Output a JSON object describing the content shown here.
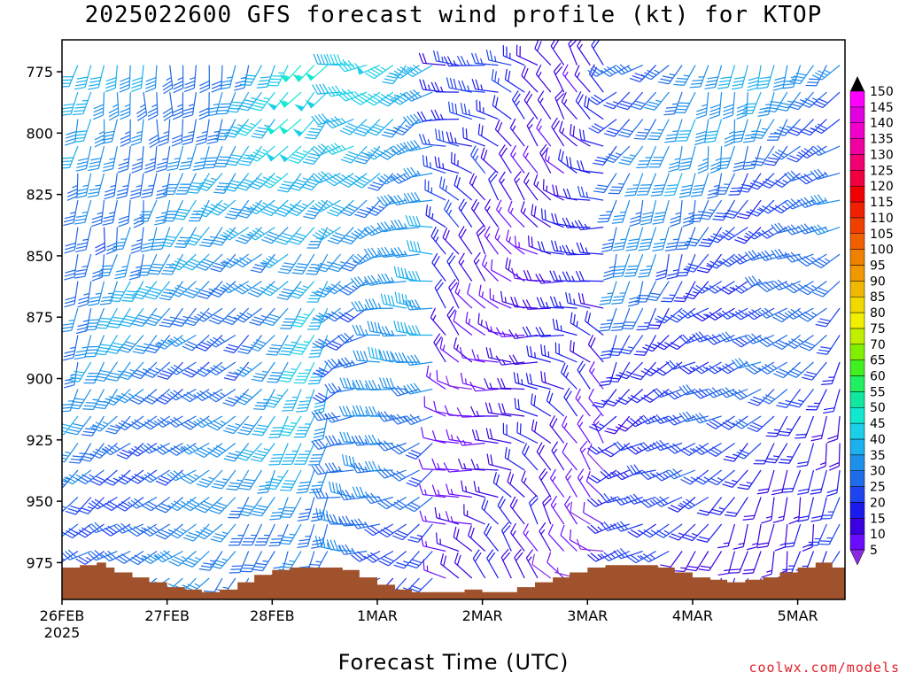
{
  "title": "2025022600 GFS forecast wind profile (kt) for KTOP",
  "xlabel": "Forecast Time (UTC)",
  "credit": "coolwx.com/models",
  "colors": {
    "terrain": "#a0522d",
    "frame": "#000000"
  },
  "chart_data": {
    "type": "wind-barb time-height section",
    "y_axis": {
      "label": "",
      "ticks": [
        775,
        800,
        825,
        850,
        875,
        900,
        925,
        950,
        975
      ],
      "range": [
        762,
        990
      ],
      "inverted": true
    },
    "x_axis": {
      "ticks": [
        "26FEB",
        "27FEB",
        "28FEB",
        "1MAR",
        "2MAR",
        "3MAR",
        "4MAR",
        "5MAR"
      ],
      "year_label": "2025",
      "range_days": [
        0,
        7.45
      ]
    },
    "colorbar": {
      "levels": [
        5,
        10,
        15,
        20,
        25,
        30,
        35,
        40,
        45,
        50,
        55,
        60,
        65,
        70,
        75,
        80,
        85,
        90,
        95,
        100,
        105,
        110,
        115,
        120,
        125,
        130,
        135,
        140,
        145,
        150
      ],
      "colors": [
        "#8a2be2",
        "#6a0dff",
        "#3a00e0",
        "#1a1aee",
        "#1e44f0",
        "#1f6ce8",
        "#1e90ea",
        "#1cb0ec",
        "#1ad0e8",
        "#10e8d0",
        "#10e8a0",
        "#20f060",
        "#40f020",
        "#80f000",
        "#c0f000",
        "#f0f000",
        "#f0d800",
        "#f0b800",
        "#f09800",
        "#f08000",
        "#f06000",
        "#f04000",
        "#f02000",
        "#f00000",
        "#f00040",
        "#f00070",
        "#f000a0",
        "#f000c8",
        "#e000e0",
        "#ff00ff"
      ]
    },
    "surface_pressure": {
      "note": "terrain fill, surface pressure (hPa) by forecast day",
      "days": [
        0,
        0.17,
        0.33,
        0.42,
        0.5,
        0.67,
        0.83,
        1.0,
        1.17,
        1.33,
        1.5,
        1.67,
        1.83,
        2.0,
        2.17,
        2.33,
        2.5,
        2.67,
        2.83,
        3.0,
        3.17,
        3.33,
        3.5,
        3.67,
        3.83,
        4.0,
        4.17,
        4.33,
        4.5,
        4.67,
        4.83,
        5.0,
        5.17,
        5.33,
        5.5,
        5.67,
        5.83,
        6.0,
        6.17,
        6.33,
        6.5,
        6.67,
        6.83,
        7.0,
        7.17,
        7.33,
        7.45
      ],
      "pressure": [
        977,
        976,
        975,
        977,
        979,
        981,
        983,
        985,
        986,
        987,
        986,
        983,
        980,
        978,
        977,
        977,
        977,
        978,
        981,
        984,
        986,
        987,
        987,
        987,
        986,
        987,
        987,
        985,
        983,
        981,
        979,
        977,
        976,
        976,
        976,
        977,
        979,
        981,
        982,
        983,
        982,
        981,
        979,
        977,
        975,
        977,
        979
      ]
    },
    "wind_samples": {
      "note": "representative barbs: speed (kt), direction (deg from)",
      "rows": [
        {
          "p": 775,
          "speed": [
            35,
            30,
            30,
            35,
            40,
            45,
            35,
            35,
            35,
            45,
            35,
            30,
            35,
            40,
            15
          ]
        },
        {
          "p": 850,
          "speed": [
            40,
            30,
            30,
            35,
            40,
            30,
            35,
            30,
            15,
            10,
            30,
            35,
            25,
            20,
            30
          ]
        },
        {
          "p": 925,
          "speed": [
            35,
            30,
            30,
            30,
            40,
            30,
            30,
            20,
            15,
            15,
            25,
            30,
            15,
            20,
            25
          ]
        }
      ]
    }
  }
}
